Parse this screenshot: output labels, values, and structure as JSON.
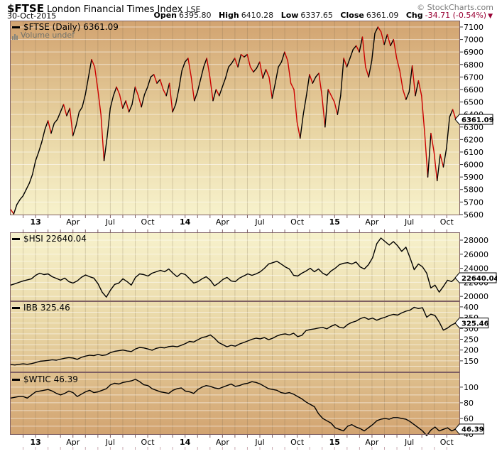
{
  "header": {
    "symbol": "$FTSE",
    "title": "London Financial Times Index",
    "exchange": "LSE",
    "copyright": "© StockCharts.com",
    "date": "30-Oct-2015",
    "ohlc": {
      "open_label": "Open",
      "open": "6395.80",
      "high_label": "High",
      "high": "6410.28",
      "low_label": "Low",
      "low": "6337.65",
      "close_label": "Close",
      "close": "6361.09",
      "chg_label": "Chg",
      "chg": "-34.71 (-0.54%)",
      "chg_triangle": "▼"
    },
    "colors": {
      "chg": "#990033",
      "copyright_gray": "#7a7a7a"
    }
  },
  "legend": {
    "ftse_label": "$FTSE (Daily) 6361.09",
    "volume_label": "Volume undef",
    "hsi_label": "$HSI 22640.04",
    "ibb_label": "IBB 325.46",
    "wtic_label": "$WTIC 46.39"
  },
  "chart_data": {
    "type": "line",
    "title": "$FTSE London Financial Times Index LSE with $HSI, IBB, $WTIC",
    "legend_position": "top-left-per-panel",
    "grid": true,
    "colors": {
      "up": "#000000",
      "down": "#CC0000",
      "line": "#000000",
      "border": "#7E5F63",
      "grid_h": "rgba(255,255,255,0.55)",
      "grid_v": "rgba(120,105,75,0.25)",
      "bg_dark": "#D2A370",
      "bg_light": "#F7F2CC",
      "bottom_ticks": "#C9A9B0"
    },
    "x_axis": {
      "tick_labels": [
        "13",
        "Apr",
        "Jul",
        "Oct",
        "14",
        "Apr",
        "Jul",
        "Oct",
        "15",
        "Apr",
        "Jul",
        "Oct"
      ],
      "tick_months": [
        2,
        5,
        8,
        11,
        14,
        17,
        20,
        23,
        26,
        29,
        32,
        35
      ],
      "year_labels": [
        "13",
        "14",
        "15"
      ],
      "months_total": 36
    },
    "panels": [
      {
        "id": "ftse",
        "symbol": "$FTSE",
        "value_label": "6361.09",
        "style": "updown",
        "grid_step": 100,
        "axis": {
          "min": 5594,
          "max": 7151,
          "ticks": [
            7100,
            7000,
            6900,
            6800,
            6700,
            6600,
            6500,
            6400,
            6300,
            6200,
            6100,
            6000,
            5900,
            5800,
            5700,
            5600
          ]
        },
        "values": [
          5640,
          5605,
          5680,
          5720,
          5750,
          5800,
          5850,
          5920,
          6030,
          6100,
          6180,
          6280,
          6350,
          6250,
          6330,
          6360,
          6420,
          6480,
          6390,
          6450,
          6230,
          6310,
          6420,
          6460,
          6560,
          6700,
          6840,
          6780,
          6600,
          6400,
          6030,
          6220,
          6450,
          6550,
          6620,
          6560,
          6450,
          6510,
          6420,
          6480,
          6620,
          6550,
          6460,
          6560,
          6620,
          6700,
          6720,
          6650,
          6680,
          6600,
          6550,
          6650,
          6420,
          6480,
          6600,
          6750,
          6820,
          6850,
          6700,
          6510,
          6580,
          6680,
          6780,
          6850,
          6700,
          6510,
          6600,
          6550,
          6620,
          6690,
          6780,
          6810,
          6850,
          6780,
          6880,
          6860,
          6880,
          6780,
          6740,
          6770,
          6820,
          6690,
          6760,
          6700,
          6530,
          6650,
          6780,
          6820,
          6900,
          6830,
          6650,
          6600,
          6340,
          6210,
          6400,
          6550,
          6720,
          6650,
          6700,
          6730,
          6550,
          6300,
          6600,
          6550,
          6500,
          6400,
          6550,
          6850,
          6780,
          6850,
          6920,
          6950,
          6900,
          7020,
          6780,
          6700,
          6830,
          7050,
          7100,
          7060,
          6960,
          7040,
          6950,
          7000,
          6850,
          6750,
          6600,
          6520,
          6580,
          6790,
          6550,
          6670,
          6550,
          6250,
          5900,
          6250,
          6100,
          5870,
          6080,
          5980,
          6130,
          6380,
          6440,
          6361.09
        ]
      },
      {
        "id": "hsi",
        "symbol": "$HSI",
        "value_label": "22640.04",
        "style": "line",
        "grid_step": 1000,
        "axis": {
          "min": 19310,
          "max": 29110,
          "ticks": [
            28000,
            26000,
            24000,
            22000,
            20000
          ]
        },
        "values": [
          21600,
          21800,
          22000,
          22200,
          22350,
          22500,
          23000,
          23300,
          23100,
          23200,
          22800,
          22550,
          22300,
          22600,
          22100,
          21900,
          22200,
          22700,
          23050,
          22800,
          22600,
          21800,
          20600,
          19900,
          20900,
          21700,
          21900,
          22500,
          22100,
          21600,
          22700,
          23200,
          23100,
          22900,
          23300,
          23500,
          23700,
          23500,
          23900,
          23300,
          22800,
          23300,
          23100,
          22500,
          21900,
          22100,
          22500,
          22800,
          22300,
          21500,
          21900,
          22400,
          22700,
          22200,
          22100,
          22600,
          22900,
          23200,
          23000,
          23200,
          23500,
          24000,
          24600,
          24800,
          25000,
          24600,
          24200,
          23900,
          23000,
          22900,
          23300,
          23600,
          24000,
          23500,
          23900,
          23300,
          23000,
          23600,
          24000,
          24500,
          24700,
          24800,
          24600,
          24900,
          24200,
          23900,
          24500,
          25500,
          27500,
          28300,
          27800,
          27300,
          27800,
          27200,
          26400,
          27000,
          25500,
          23800,
          24600,
          24200,
          23300,
          21200,
          21600,
          20600,
          21400,
          22300,
          22100,
          22640.04
        ]
      },
      {
        "id": "ibb",
        "symbol": "IBB",
        "value_label": "325.46",
        "style": "line",
        "grid_step": 25,
        "axis": {
          "min": 97,
          "max": 426,
          "ticks": [
            400,
            350,
            300,
            250,
            200,
            150
          ]
        },
        "values": [
          133,
          131,
          134,
          136,
          134,
          137,
          142,
          148,
          150,
          152,
          155,
          153,
          158,
          162,
          165,
          163,
          157,
          166,
          172,
          176,
          174,
          180,
          175,
          178,
          188,
          194,
          197,
          200,
          196,
          193,
          205,
          212,
          210,
          205,
          199,
          208,
          212,
          210,
          216,
          218,
          215,
          222,
          230,
          240,
          237,
          248,
          258,
          262,
          270,
          255,
          235,
          225,
          215,
          222,
          218,
          228,
          235,
          242,
          250,
          255,
          252,
          258,
          248,
          255,
          265,
          272,
          275,
          270,
          278,
          262,
          268,
          290,
          295,
          298,
          302,
          305,
          298,
          310,
          318,
          306,
          302,
          318,
          328,
          334,
          345,
          352,
          342,
          348,
          338,
          346,
          352,
          360,
          365,
          362,
          372,
          380,
          385,
          398,
          392,
          396,
          352,
          366,
          360,
          330,
          292,
          302,
          316,
          325.46
        ]
      },
      {
        "id": "wtic",
        "symbol": "$WTIC",
        "value_label": "46.39",
        "style": "line",
        "grid_step": 10,
        "axis": {
          "min": 39,
          "max": 119,
          "ticks": [
            100,
            80,
            60,
            40
          ]
        },
        "values": [
          86,
          87,
          88,
          88,
          86,
          90,
          94,
          95,
          96,
          97,
          95,
          92,
          90,
          92,
          95,
          93,
          88,
          91,
          94,
          96,
          93,
          94,
          96,
          98,
          103,
          105,
          104,
          106,
          107,
          108,
          110,
          107,
          103,
          102,
          98,
          96,
          94,
          93,
          92,
          96,
          98,
          99,
          95,
          94,
          92,
          97,
          100,
          102,
          101,
          99,
          98,
          100,
          102,
          104,
          101,
          102,
          104,
          105,
          107,
          106,
          104,
          101,
          98,
          97,
          96,
          93,
          92,
          93,
          91,
          88,
          85,
          81,
          78,
          75,
          66,
          60,
          57,
          54,
          48,
          46,
          44,
          50,
          52,
          49,
          47,
          44,
          48,
          52,
          57,
          59,
          60,
          59,
          61,
          61,
          60,
          59,
          56,
          52,
          48,
          44,
          38,
          45,
          49,
          44,
          46,
          48,
          44,
          46.39
        ]
      }
    ]
  }
}
